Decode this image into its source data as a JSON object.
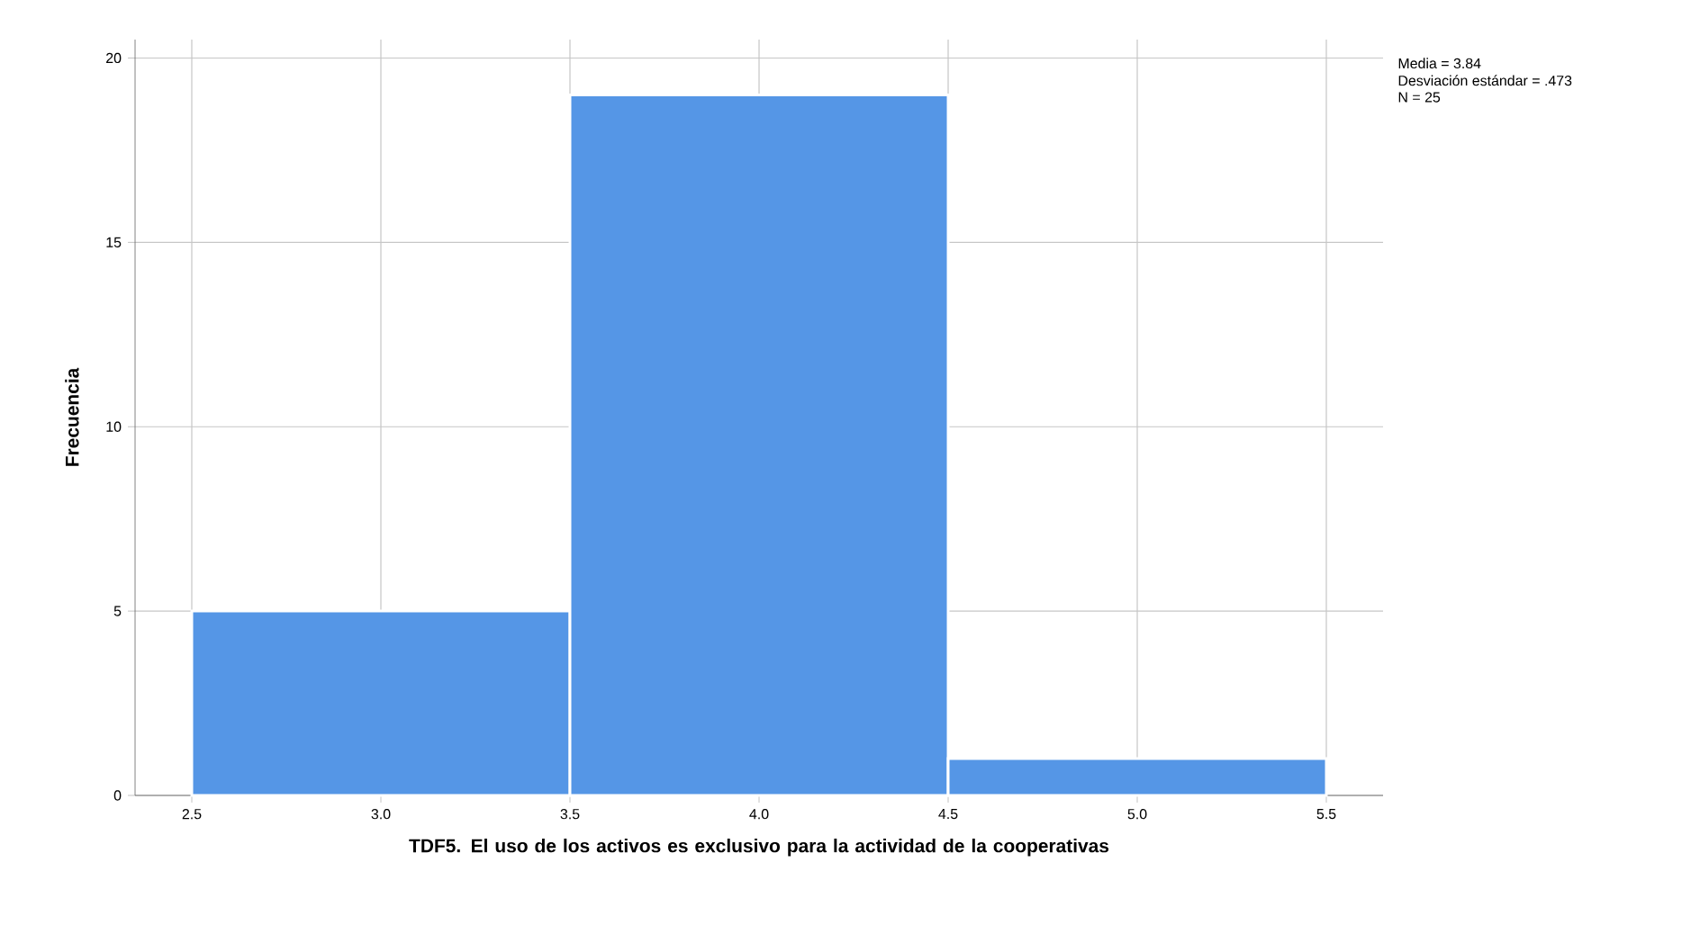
{
  "chart_data": {
    "type": "histogram",
    "xlabel": "TDF5. El uso de los activos es exclusivo para la actividad de la cooperativas",
    "ylabel": "Frecuencia",
    "bins": [
      2.5,
      3.5,
      4.5,
      5.5
    ],
    "values": [
      5,
      19,
      1
    ],
    "color": "#5596e6",
    "xlim": [
      2.35,
      5.65
    ],
    "ylim": [
      0,
      20.5
    ],
    "xticks": [
      2.5,
      {
        "value": 3,
        "label": "3.0"
      },
      3.5,
      {
        "value": 4,
        "label": "4.0"
      },
      4.5,
      {
        "value": 5,
        "label": "5.0"
      },
      5.5
    ],
    "yticks": [
      0,
      5,
      10,
      15,
      20
    ],
    "grid": true,
    "annotations": [
      "Media = 3.84",
      "Desviación estándar = .473",
      "N = 25"
    ]
  }
}
